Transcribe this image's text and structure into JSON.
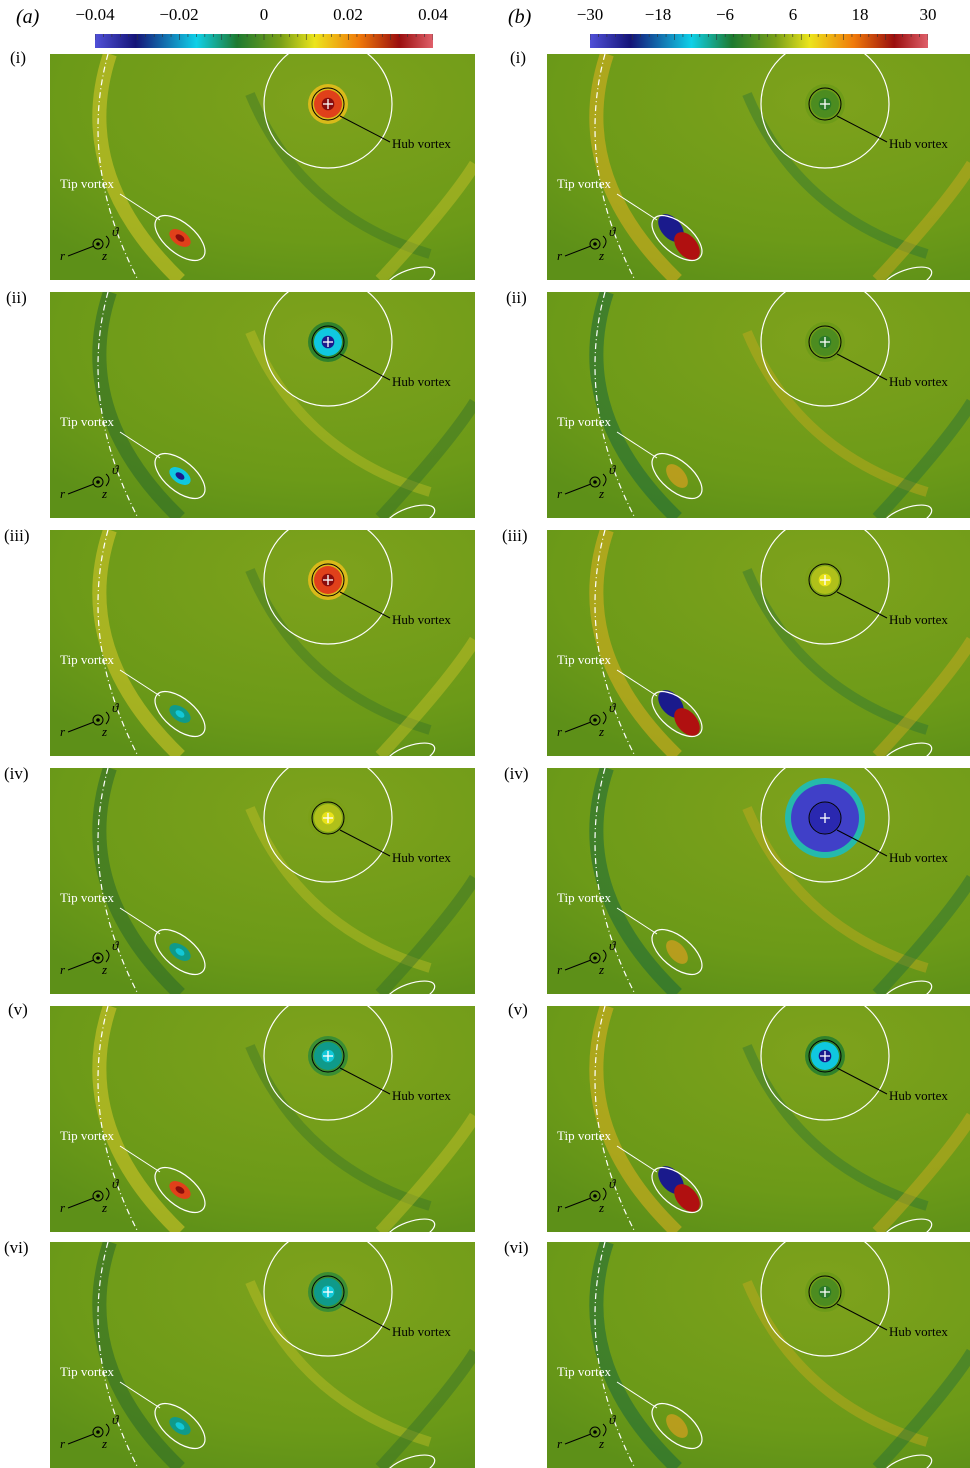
{
  "figure": {
    "col_a": {
      "label": "a",
      "colorbar_ticks": [
        "−0.04",
        "−0.02",
        "0",
        "0.02",
        "0.04"
      ]
    },
    "col_b": {
      "label": "b",
      "colorbar_ticks": [
        "−30",
        "−18",
        "−6",
        "6",
        "18",
        "30"
      ]
    },
    "row_labels": [
      "(i)",
      "(ii)",
      "(iii)",
      "(iv)",
      "(v)",
      "(vi)"
    ],
    "annotations": {
      "hub": "Hub vortex",
      "tip": "Tip vortex",
      "r": "r",
      "z": "z",
      "theta": "ϑ"
    }
  },
  "colormap": [
    "#4a3cc8",
    "#1a1a8c",
    "#00c8e6",
    "#1f8a3a",
    "#6a9a18",
    "#e6e21a",
    "#f0780a",
    "#c81414",
    "#7a0a0a"
  ],
  "panels_a": [
    {
      "hub": "red",
      "tip": "red"
    },
    {
      "hub": "blue",
      "tip": "blue"
    },
    {
      "hub": "red",
      "tip": "cyan"
    },
    {
      "hub": "yellow",
      "tip": "cyan"
    },
    {
      "hub": "cyan",
      "tip": "red"
    },
    {
      "hub": "cyan",
      "tip": "cyan"
    }
  ],
  "panels_b": [
    {
      "hub": "green",
      "tip": "dipole"
    },
    {
      "hub": "green",
      "tip": "weak"
    },
    {
      "hub": "yellow",
      "tip": "dipole"
    },
    {
      "hub": "blue",
      "tip": "weak"
    },
    {
      "hub": "blue",
      "tip": "dipole"
    },
    {
      "hub": "green",
      "tip": "weak"
    }
  ]
}
